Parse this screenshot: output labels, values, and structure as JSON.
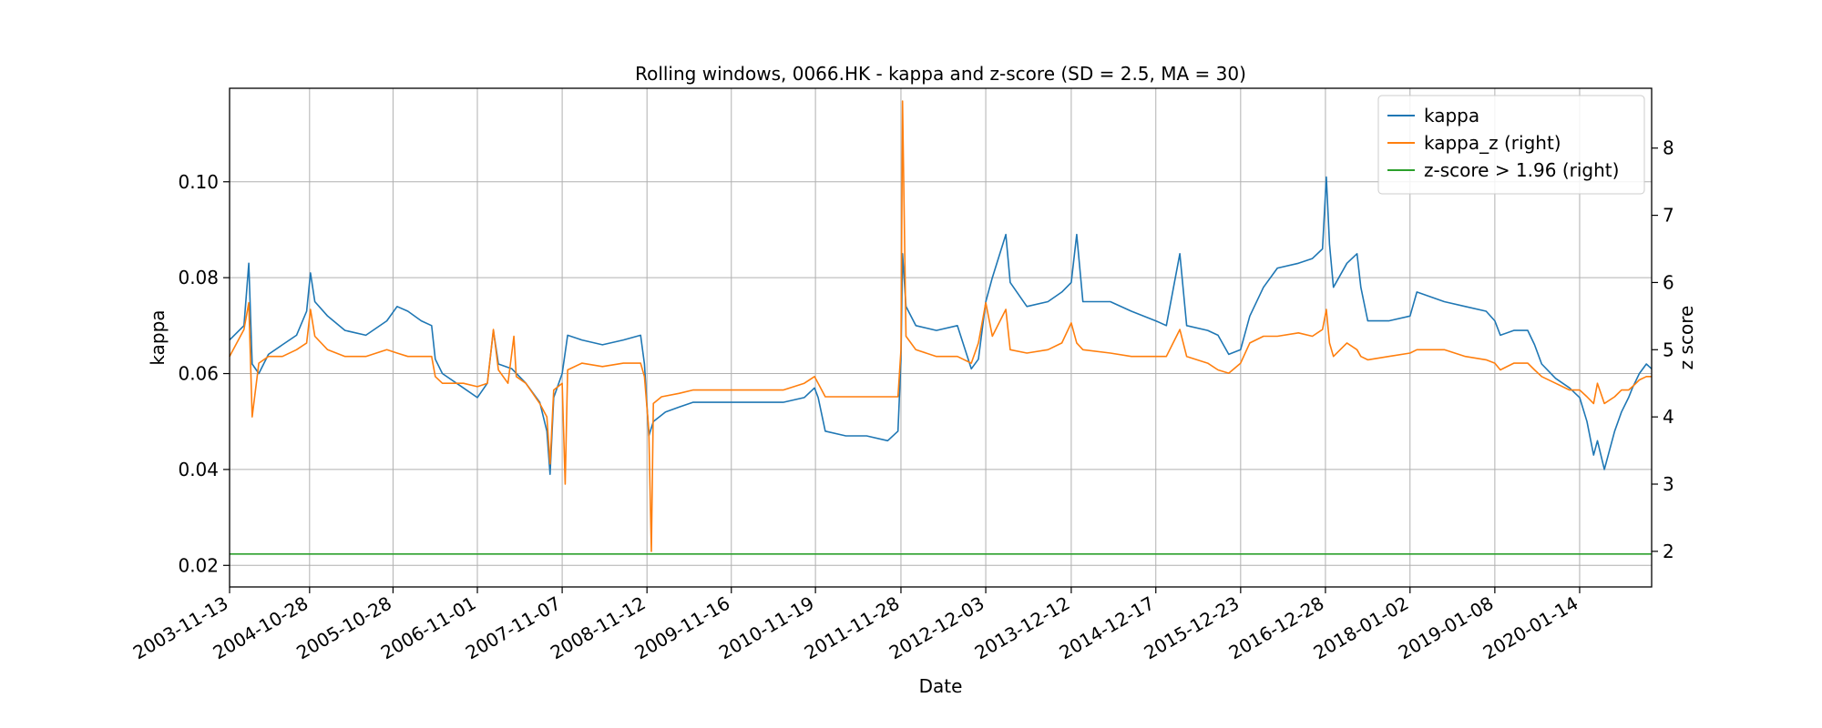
{
  "chart_data": {
    "type": "line",
    "title": "Rolling windows, 0066.HK - kappa and z-score (SD = 2.5, MA = 30)",
    "xlabel": "Date",
    "ylabel": "kappa",
    "ylabel_right": "z score",
    "grid": true,
    "legend_position": "top-right",
    "x_ticks": [
      "2003-11-13",
      "2004-10-28",
      "2005-10-28",
      "2006-11-01",
      "2007-11-07",
      "2008-11-12",
      "2009-11-16",
      "2010-11-19",
      "2011-11-28",
      "2012-12-03",
      "2013-12-12",
      "2014-12-17",
      "2015-12-23",
      "2016-12-28",
      "2018-01-02",
      "2019-01-08",
      "2020-01-14"
    ],
    "xlim": [
      "2003-11-13",
      "2020-11-24"
    ],
    "y_ticks": [
      "0.02",
      "0.04",
      "0.06",
      "0.08",
      "0.10"
    ],
    "y_tick_values": [
      0.02,
      0.04,
      0.06,
      0.08,
      0.1
    ],
    "ylim": [
      0.0155,
      0.1195
    ],
    "y2_ticks": [
      "2",
      "3",
      "4",
      "5",
      "6",
      "7",
      "8"
    ],
    "y2_tick_values": [
      2,
      3,
      4,
      5,
      6,
      7,
      8
    ],
    "y2lim": [
      1.47,
      8.89
    ],
    "series": [
      {
        "name": "kappa",
        "axis": "left",
        "color": "#1f77b4",
        "points": [
          [
            "2003-11-13",
            0.067
          ],
          [
            "2004-01-15",
            0.07
          ],
          [
            "2004-02-05",
            0.083
          ],
          [
            "2004-02-20",
            0.062
          ],
          [
            "2004-03-20",
            0.06
          ],
          [
            "2004-05-01",
            0.064
          ],
          [
            "2004-07-01",
            0.066
          ],
          [
            "2004-09-01",
            0.068
          ],
          [
            "2004-10-15",
            0.073
          ],
          [
            "2004-11-01",
            0.081
          ],
          [
            "2004-11-20",
            0.075
          ],
          [
            "2005-01-15",
            0.072
          ],
          [
            "2005-04-01",
            0.069
          ],
          [
            "2005-07-01",
            0.068
          ],
          [
            "2005-10-01",
            0.071
          ],
          [
            "2005-11-15",
            0.074
          ],
          [
            "2006-01-01",
            0.073
          ],
          [
            "2006-03-01",
            0.071
          ],
          [
            "2006-04-15",
            0.07
          ],
          [
            "2006-05-01",
            0.063
          ],
          [
            "2006-06-01",
            0.06
          ],
          [
            "2006-09-01",
            0.057
          ],
          [
            "2006-11-01",
            0.055
          ],
          [
            "2006-12-15",
            0.058
          ],
          [
            "2007-01-10",
            0.069
          ],
          [
            "2007-02-01",
            0.062
          ],
          [
            "2007-04-01",
            0.061
          ],
          [
            "2007-06-01",
            0.058
          ],
          [
            "2007-08-01",
            0.054
          ],
          [
            "2007-09-01",
            0.048
          ],
          [
            "2007-09-15",
            0.039
          ],
          [
            "2007-10-01",
            0.055
          ],
          [
            "2007-11-07",
            0.06
          ],
          [
            "2007-12-01",
            0.068
          ],
          [
            "2008-02-01",
            0.067
          ],
          [
            "2008-05-01",
            0.066
          ],
          [
            "2008-08-01",
            0.067
          ],
          [
            "2008-10-15",
            0.068
          ],
          [
            "2008-11-01",
            0.062
          ],
          [
            "2008-11-20",
            0.047
          ],
          [
            "2008-12-10",
            0.05
          ],
          [
            "2009-02-01",
            0.052
          ],
          [
            "2009-04-01",
            0.053
          ],
          [
            "2009-06-01",
            0.054
          ],
          [
            "2009-09-01",
            0.054
          ],
          [
            "2009-12-01",
            0.054
          ],
          [
            "2010-04-01",
            0.054
          ],
          [
            "2010-07-01",
            0.054
          ],
          [
            "2010-10-01",
            0.055
          ],
          [
            "2010-11-15",
            0.057
          ],
          [
            "2010-12-01",
            0.055
          ],
          [
            "2011-01-01",
            0.048
          ],
          [
            "2011-04-01",
            0.047
          ],
          [
            "2011-07-01",
            0.047
          ],
          [
            "2011-10-01",
            0.046
          ],
          [
            "2011-11-15",
            0.048
          ],
          [
            "2011-11-28",
            0.063
          ],
          [
            "2011-12-05",
            0.085
          ],
          [
            "2011-12-20",
            0.074
          ],
          [
            "2012-02-01",
            0.07
          ],
          [
            "2012-05-01",
            0.069
          ],
          [
            "2012-08-01",
            0.07
          ],
          [
            "2012-10-01",
            0.061
          ],
          [
            "2012-11-01",
            0.063
          ],
          [
            "2012-12-03",
            0.075
          ],
          [
            "2013-01-01",
            0.08
          ],
          [
            "2013-03-01",
            0.089
          ],
          [
            "2013-03-20",
            0.079
          ],
          [
            "2013-06-01",
            0.074
          ],
          [
            "2013-09-01",
            0.075
          ],
          [
            "2013-11-01",
            0.077
          ],
          [
            "2013-12-12",
            0.079
          ],
          [
            "2014-01-05",
            0.089
          ],
          [
            "2014-02-01",
            0.075
          ],
          [
            "2014-06-01",
            0.075
          ],
          [
            "2014-09-01",
            0.073
          ],
          [
            "2014-12-17",
            0.071
          ],
          [
            "2015-02-01",
            0.07
          ],
          [
            "2015-04-01",
            0.085
          ],
          [
            "2015-05-01",
            0.07
          ],
          [
            "2015-08-01",
            0.069
          ],
          [
            "2015-09-15",
            0.068
          ],
          [
            "2015-11-01",
            0.064
          ],
          [
            "2015-12-23",
            0.065
          ],
          [
            "2016-02-01",
            0.072
          ],
          [
            "2016-04-01",
            0.078
          ],
          [
            "2016-06-01",
            0.082
          ],
          [
            "2016-09-01",
            0.083
          ],
          [
            "2016-11-01",
            0.084
          ],
          [
            "2016-12-15",
            0.086
          ],
          [
            "2017-01-01",
            0.101
          ],
          [
            "2017-01-15",
            0.087
          ],
          [
            "2017-02-01",
            0.078
          ],
          [
            "2017-04-01",
            0.083
          ],
          [
            "2017-05-15",
            0.085
          ],
          [
            "2017-06-01",
            0.078
          ],
          [
            "2017-07-01",
            0.071
          ],
          [
            "2017-10-01",
            0.071
          ],
          [
            "2018-01-02",
            0.072
          ],
          [
            "2018-02-01",
            0.077
          ],
          [
            "2018-06-01",
            0.075
          ],
          [
            "2018-09-01",
            0.074
          ],
          [
            "2018-12-01",
            0.073
          ],
          [
            "2019-01-08",
            0.071
          ],
          [
            "2019-02-01",
            0.068
          ],
          [
            "2019-04-01",
            0.069
          ],
          [
            "2019-06-01",
            0.069
          ],
          [
            "2019-07-01",
            0.066
          ],
          [
            "2019-08-01",
            0.062
          ],
          [
            "2019-10-01",
            0.059
          ],
          [
            "2019-12-01",
            0.057
          ],
          [
            "2020-01-14",
            0.055
          ],
          [
            "2020-02-15",
            0.05
          ],
          [
            "2020-03-15",
            0.043
          ],
          [
            "2020-04-01",
            0.046
          ],
          [
            "2020-05-01",
            0.04
          ],
          [
            "2020-06-15",
            0.048
          ],
          [
            "2020-07-15",
            0.052
          ],
          [
            "2020-08-15",
            0.055
          ],
          [
            "2020-09-01",
            0.057
          ],
          [
            "2020-10-01",
            0.06
          ],
          [
            "2020-11-01",
            0.062
          ],
          [
            "2020-11-24",
            0.061
          ]
        ]
      },
      {
        "name": "kappa_z (right)",
        "axis": "right",
        "color": "#ff7f0e",
        "points": [
          [
            "2003-11-13",
            4.9
          ],
          [
            "2004-01-15",
            5.3
          ],
          [
            "2004-02-05",
            5.7
          ],
          [
            "2004-02-20",
            4.0
          ],
          [
            "2004-03-20",
            4.8
          ],
          [
            "2004-05-01",
            4.9
          ],
          [
            "2004-07-01",
            4.9
          ],
          [
            "2004-09-01",
            5.0
          ],
          [
            "2004-10-15",
            5.1
          ],
          [
            "2004-11-01",
            5.6
          ],
          [
            "2004-11-20",
            5.2
          ],
          [
            "2005-01-15",
            5.0
          ],
          [
            "2005-04-01",
            4.9
          ],
          [
            "2005-07-01",
            4.9
          ],
          [
            "2005-10-01",
            5.0
          ],
          [
            "2005-11-15",
            4.95
          ],
          [
            "2006-01-01",
            4.9
          ],
          [
            "2006-03-01",
            4.9
          ],
          [
            "2006-04-15",
            4.9
          ],
          [
            "2006-05-01",
            4.6
          ],
          [
            "2006-06-01",
            4.5
          ],
          [
            "2006-09-01",
            4.5
          ],
          [
            "2006-11-01",
            4.45
          ],
          [
            "2006-12-15",
            4.5
          ],
          [
            "2007-01-10",
            5.3
          ],
          [
            "2007-02-01",
            4.7
          ],
          [
            "2007-03-15",
            4.5
          ],
          [
            "2007-04-10",
            5.2
          ],
          [
            "2007-04-20",
            4.6
          ],
          [
            "2007-06-01",
            4.5
          ],
          [
            "2007-08-01",
            4.2
          ],
          [
            "2007-09-01",
            4.0
          ],
          [
            "2007-09-15",
            3.3
          ],
          [
            "2007-10-01",
            4.4
          ],
          [
            "2007-11-07",
            4.5
          ],
          [
            "2007-11-20",
            3.0
          ],
          [
            "2007-12-01",
            4.7
          ],
          [
            "2008-02-01",
            4.8
          ],
          [
            "2008-05-01",
            4.75
          ],
          [
            "2008-08-01",
            4.8
          ],
          [
            "2008-10-15",
            4.8
          ],
          [
            "2008-11-01",
            4.6
          ],
          [
            "2008-11-20",
            3.8
          ],
          [
            "2008-12-01",
            2.0
          ],
          [
            "2008-12-10",
            4.2
          ],
          [
            "2009-01-15",
            4.3
          ],
          [
            "2009-04-01",
            4.35
          ],
          [
            "2009-06-01",
            4.4
          ],
          [
            "2009-09-01",
            4.4
          ],
          [
            "2009-12-01",
            4.4
          ],
          [
            "2010-04-01",
            4.4
          ],
          [
            "2010-07-01",
            4.4
          ],
          [
            "2010-10-01",
            4.5
          ],
          [
            "2010-11-15",
            4.6
          ],
          [
            "2010-12-01",
            4.5
          ],
          [
            "2011-01-01",
            4.3
          ],
          [
            "2011-04-01",
            4.3
          ],
          [
            "2011-07-01",
            4.3
          ],
          [
            "2011-10-01",
            4.3
          ],
          [
            "2011-11-15",
            4.3
          ],
          [
            "2011-11-28",
            5.0
          ],
          [
            "2011-12-05",
            8.7
          ],
          [
            "2011-12-20",
            5.2
          ],
          [
            "2012-02-01",
            5.0
          ],
          [
            "2012-05-01",
            4.9
          ],
          [
            "2012-08-01",
            4.9
          ],
          [
            "2012-10-01",
            4.8
          ],
          [
            "2012-11-01",
            5.1
          ],
          [
            "2012-12-03",
            5.7
          ],
          [
            "2013-01-01",
            5.2
          ],
          [
            "2013-03-01",
            5.6
          ],
          [
            "2013-03-20",
            5.0
          ],
          [
            "2013-06-01",
            4.95
          ],
          [
            "2013-09-01",
            5.0
          ],
          [
            "2013-11-01",
            5.1
          ],
          [
            "2013-12-12",
            5.4
          ],
          [
            "2014-01-05",
            5.1
          ],
          [
            "2014-02-01",
            5.0
          ],
          [
            "2014-06-01",
            4.95
          ],
          [
            "2014-09-01",
            4.9
          ],
          [
            "2014-12-17",
            4.9
          ],
          [
            "2015-02-01",
            4.9
          ],
          [
            "2015-04-01",
            5.3
          ],
          [
            "2015-05-01",
            4.9
          ],
          [
            "2015-08-01",
            4.8
          ],
          [
            "2015-09-15",
            4.7
          ],
          [
            "2015-11-01",
            4.65
          ],
          [
            "2015-12-23",
            4.8
          ],
          [
            "2016-02-01",
            5.1
          ],
          [
            "2016-04-01",
            5.2
          ],
          [
            "2016-06-01",
            5.2
          ],
          [
            "2016-09-01",
            5.25
          ],
          [
            "2016-11-01",
            5.2
          ],
          [
            "2016-12-15",
            5.3
          ],
          [
            "2017-01-01",
            5.6
          ],
          [
            "2017-01-15",
            5.1
          ],
          [
            "2017-02-01",
            4.9
          ],
          [
            "2017-04-01",
            5.1
          ],
          [
            "2017-05-15",
            5.0
          ],
          [
            "2017-06-01",
            4.9
          ],
          [
            "2017-07-01",
            4.85
          ],
          [
            "2017-10-01",
            4.9
          ],
          [
            "2018-01-02",
            4.95
          ],
          [
            "2018-02-01",
            5.0
          ],
          [
            "2018-06-01",
            5.0
          ],
          [
            "2018-09-01",
            4.9
          ],
          [
            "2018-12-01",
            4.85
          ],
          [
            "2019-01-08",
            4.8
          ],
          [
            "2019-02-01",
            4.7
          ],
          [
            "2019-04-01",
            4.8
          ],
          [
            "2019-06-01",
            4.8
          ],
          [
            "2019-07-01",
            4.7
          ],
          [
            "2019-08-01",
            4.6
          ],
          [
            "2019-10-01",
            4.5
          ],
          [
            "2019-12-01",
            4.4
          ],
          [
            "2020-01-14",
            4.4
          ],
          [
            "2020-02-15",
            4.3
          ],
          [
            "2020-03-15",
            4.2
          ],
          [
            "2020-04-01",
            4.5
          ],
          [
            "2020-05-01",
            4.2
          ],
          [
            "2020-06-15",
            4.3
          ],
          [
            "2020-07-15",
            4.4
          ],
          [
            "2020-08-15",
            4.4
          ],
          [
            "2020-09-01",
            4.45
          ],
          [
            "2020-10-01",
            4.55
          ],
          [
            "2020-11-01",
            4.6
          ],
          [
            "2020-11-24",
            4.6
          ]
        ]
      },
      {
        "name": "z-score > 1.96 (right)",
        "axis": "right",
        "color": "#2ca02c",
        "points": [
          [
            "2003-11-13",
            1.96
          ],
          [
            "2020-11-24",
            1.96
          ]
        ]
      }
    ]
  }
}
